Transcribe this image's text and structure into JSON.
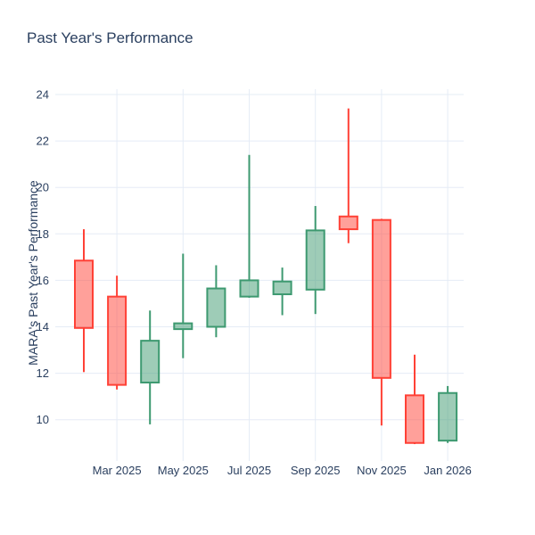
{
  "title": "Past Year's Performance",
  "colors": {
    "increasing": "#3D9970",
    "decreasing": "#FF4136",
    "text": "#2a3f5f",
    "grid": "#E5ECF6",
    "background": "#ffffff"
  },
  "chart_data": {
    "type": "candlestick",
    "title": "Past Year's Performance",
    "xlabel": "",
    "ylabel": "MARA's Past Year's Performance",
    "grid": true,
    "legend": false,
    "ylim": [
      8.2,
      24.2
    ],
    "y_ticks": [
      10,
      12,
      14,
      16,
      18,
      20,
      22,
      24
    ],
    "x_tick_labels": [
      "Mar 2025",
      "May 2025",
      "Jul 2025",
      "Sep 2025",
      "Nov 2025",
      "Jan 2026"
    ],
    "x_tick_month_indices": [
      1,
      3,
      5,
      7,
      9,
      11
    ],
    "categories": [
      "Feb 2025",
      "Mar 2025",
      "Apr 2025",
      "May 2025",
      "Jun 2025",
      "Jul 2025",
      "Aug 2025",
      "Sep 2025",
      "Oct 2025",
      "Nov 2025",
      "Dec 2025",
      "Jan 2026"
    ],
    "ohlc": [
      {
        "month": "Feb 2025",
        "open": 16.85,
        "high": 18.2,
        "low": 12.05,
        "close": 13.95,
        "direction": "decreasing"
      },
      {
        "month": "Mar 2025",
        "open": 15.3,
        "high": 16.2,
        "low": 11.3,
        "close": 11.5,
        "direction": "decreasing"
      },
      {
        "month": "Apr 2025",
        "open": 11.6,
        "high": 14.7,
        "low": 9.8,
        "close": 13.4,
        "direction": "increasing"
      },
      {
        "month": "May 2025",
        "open": 13.9,
        "high": 17.15,
        "low": 12.65,
        "close": 14.15,
        "direction": "increasing"
      },
      {
        "month": "Jun 2025",
        "open": 14.0,
        "high": 16.65,
        "low": 13.55,
        "close": 15.65,
        "direction": "increasing"
      },
      {
        "month": "Jul 2025",
        "open": 15.3,
        "high": 21.4,
        "low": 15.25,
        "close": 16.0,
        "direction": "increasing"
      },
      {
        "month": "Aug 2025",
        "open": 15.4,
        "high": 16.55,
        "low": 14.5,
        "close": 15.95,
        "direction": "increasing"
      },
      {
        "month": "Sep 2025",
        "open": 15.6,
        "high": 19.2,
        "low": 14.55,
        "close": 18.15,
        "direction": "increasing"
      },
      {
        "month": "Oct 2025",
        "open": 18.75,
        "high": 23.4,
        "low": 17.6,
        "close": 18.2,
        "direction": "decreasing"
      },
      {
        "month": "Nov 2025",
        "open": 18.6,
        "high": 18.65,
        "low": 9.75,
        "close": 11.8,
        "direction": "decreasing"
      },
      {
        "month": "Dec 2025",
        "open": 11.05,
        "high": 12.8,
        "low": 8.95,
        "close": 9.0,
        "direction": "decreasing"
      },
      {
        "month": "Jan 2026",
        "open": 9.1,
        "high": 11.45,
        "low": 9.0,
        "close": 11.15,
        "direction": "increasing"
      }
    ]
  }
}
